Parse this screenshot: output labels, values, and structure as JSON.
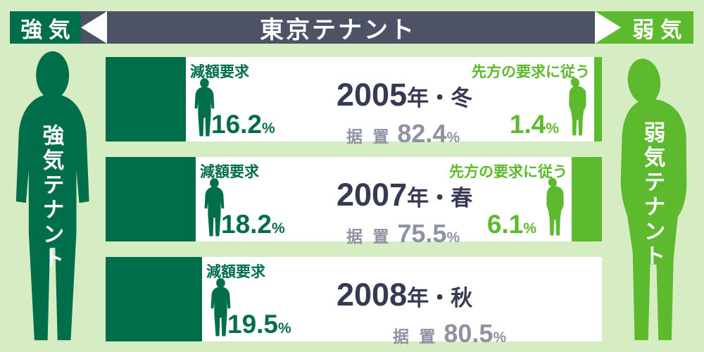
{
  "header": {
    "bull_label": "強 気",
    "title": "東京テナント",
    "bear_label": "弱 気"
  },
  "side_figures": {
    "bull_label": "強気テナント",
    "bear_label": "弱気テナント"
  },
  "rows": [
    {
      "period": {
        "year": "2005",
        "season": "年・冬"
      },
      "reduction": {
        "label": "減額要求",
        "value": "16.2",
        "unit": "%",
        "pct": 16.2
      },
      "unchanged": {
        "label": "据 置",
        "value": "82.4",
        "unit": "%",
        "pct": 82.4
      },
      "comply": {
        "label": "先方の要求に従う",
        "value": "1.4",
        "unit": "%",
        "pct": 1.4
      }
    },
    {
      "period": {
        "year": "2007",
        "season": "年・春"
      },
      "reduction": {
        "label": "減額要求",
        "value": "18.2",
        "unit": "%",
        "pct": 18.2
      },
      "unchanged": {
        "label": "据 置",
        "value": "75.5",
        "unit": "%",
        "pct": 75.5
      },
      "comply": {
        "label": "先方の要求に従う",
        "value": "6.1",
        "unit": "%",
        "pct": 6.1
      }
    },
    {
      "period": {
        "year": "2008",
        "season": "年・秋"
      },
      "reduction": {
        "label": "減額要求",
        "value": "19.5",
        "unit": "%",
        "pct": 19.5
      },
      "unchanged": {
        "label": "据 置",
        "value": "80.5",
        "unit": "%",
        "pct": 80.5
      },
      "comply": null
    }
  ],
  "colors": {
    "background": "#d6ecc2",
    "dark_green": "#016e4b",
    "light_green": "#5db92d",
    "header_slate": "#4e5265",
    "title_navy": "#363b53",
    "stat_gray": "#8f92a2",
    "white": "#ffffff"
  },
  "chart_data": {
    "type": "bar",
    "orientation": "horizontal-stacked",
    "title": "東京テナント",
    "unit": "%",
    "categories": [
      "2005年・冬",
      "2007年・春",
      "2008年・秋"
    ],
    "series": [
      {
        "name": "減額要求",
        "values": [
          16.2,
          18.2,
          19.5
        ]
      },
      {
        "name": "据置",
        "values": [
          82.4,
          75.5,
          80.5
        ]
      },
      {
        "name": "先方の要求に従う",
        "values": [
          1.4,
          6.1,
          null
        ]
      }
    ],
    "legend_left": "強気テナント",
    "legend_right": "弱気テナント",
    "axis_left_label": "強気",
    "axis_right_label": "弱気",
    "xlim": [
      0,
      100
    ]
  }
}
